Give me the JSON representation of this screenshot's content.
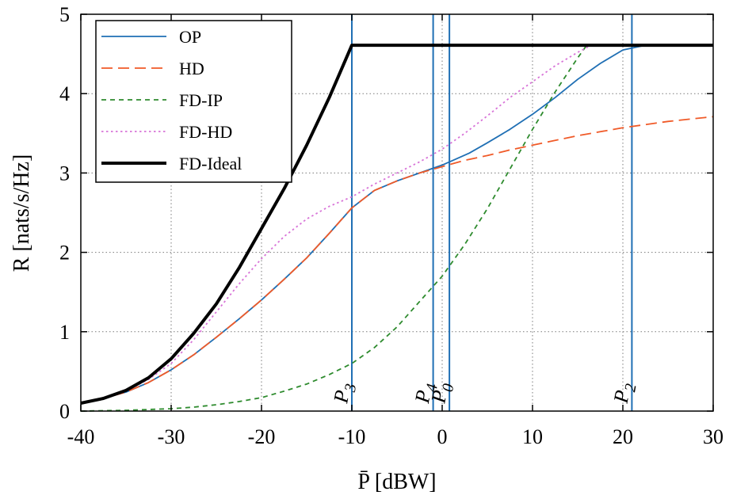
{
  "chart_data": {
    "type": "line",
    "xlabel": "P̄ [dBW]",
    "ylabel": "R [nats/s/Hz]",
    "xlim": [
      -40,
      30
    ],
    "ylim": [
      0,
      5
    ],
    "xticks": [
      -40,
      -30,
      -20,
      -10,
      0,
      10,
      20,
      30
    ],
    "xtick_labels": [
      "-40",
      "-30",
      "-20",
      "-10",
      "0",
      "10",
      "20",
      "30"
    ],
    "yticks": [
      0,
      1,
      2,
      3,
      4,
      5
    ],
    "ytick_labels": [
      "0",
      "1",
      "2",
      "3",
      "4",
      "5"
    ],
    "grid": true,
    "legend_position": "top-left",
    "series": [
      {
        "name": "OP",
        "color": "#1f6fb4",
        "style": "solid",
        "x": [
          -40,
          -37.5,
          -35,
          -32.5,
          -30,
          -27.5,
          -25,
          -22.5,
          -20,
          -17.5,
          -15,
          -12.5,
          -10,
          -7.5,
          -5,
          -2.5,
          -1,
          0,
          1,
          3,
          5,
          7.5,
          10,
          12.5,
          15,
          17.5,
          20,
          22.5,
          25,
          27.5,
          30
        ],
        "y": [
          0.1,
          0.16,
          0.24,
          0.36,
          0.52,
          0.71,
          0.93,
          1.16,
          1.4,
          1.66,
          1.93,
          2.24,
          2.56,
          2.78,
          2.9,
          3.0,
          3.06,
          3.1,
          3.15,
          3.25,
          3.38,
          3.55,
          3.74,
          3.95,
          4.18,
          4.38,
          4.55,
          4.61,
          4.61,
          4.61,
          4.61
        ]
      },
      {
        "name": "HD",
        "color": "#f05a28",
        "style": "dashed",
        "x": [
          -40,
          -37.5,
          -35,
          -32.5,
          -30,
          -27.5,
          -25,
          -22.5,
          -20,
          -17.5,
          -15,
          -12.5,
          -10,
          -7.5,
          -5,
          -2.5,
          0,
          2.5,
          5,
          7.5,
          10,
          12.5,
          15,
          17.5,
          20,
          22.5,
          25,
          27.5,
          30
        ],
        "y": [
          0.1,
          0.16,
          0.24,
          0.36,
          0.52,
          0.71,
          0.93,
          1.16,
          1.4,
          1.66,
          1.93,
          2.24,
          2.56,
          2.78,
          2.9,
          3.0,
          3.08,
          3.16,
          3.22,
          3.29,
          3.35,
          3.41,
          3.47,
          3.52,
          3.57,
          3.61,
          3.65,
          3.68,
          3.71
        ]
      },
      {
        "name": "FD-IP",
        "color": "#2e8b2e",
        "style": "dashed-short",
        "x": [
          -40,
          -35,
          -30,
          -27.5,
          -25,
          -22.5,
          -20,
          -17.5,
          -15,
          -12.5,
          -10,
          -7.5,
          -5,
          -2.5,
          0,
          2.5,
          5,
          7.5,
          10,
          12.5,
          15,
          16,
          30
        ],
        "y": [
          0,
          0.01,
          0.03,
          0.05,
          0.08,
          0.12,
          0.17,
          0.25,
          0.34,
          0.46,
          0.6,
          0.8,
          1.06,
          1.38,
          1.7,
          2.1,
          2.55,
          3.05,
          3.55,
          4.02,
          4.45,
          4.61,
          4.61
        ]
      },
      {
        "name": "FD-HD",
        "color": "#d874d8",
        "style": "dotted",
        "x": [
          -40,
          -37.5,
          -35,
          -32.5,
          -30,
          -27.5,
          -25,
          -22.5,
          -20,
          -17.5,
          -15,
          -12.5,
          -10,
          -7.5,
          -5,
          -2.5,
          0,
          2.5,
          5,
          7.5,
          10,
          12.5,
          15,
          16.5,
          30
        ],
        "y": [
          0.1,
          0.16,
          0.25,
          0.4,
          0.6,
          0.9,
          1.25,
          1.6,
          1.92,
          2.2,
          2.42,
          2.58,
          2.7,
          2.86,
          3.0,
          3.14,
          3.3,
          3.5,
          3.72,
          3.95,
          4.15,
          4.35,
          4.52,
          4.61,
          4.61
        ]
      },
      {
        "name": "FD-Ideal",
        "color": "#000000",
        "style": "solid-thick",
        "x": [
          -40,
          -37.5,
          -35,
          -32.5,
          -30,
          -27.5,
          -25,
          -22.5,
          -20,
          -17.5,
          -15,
          -12.5,
          -10,
          30
        ],
        "y": [
          0.1,
          0.16,
          0.26,
          0.42,
          0.66,
          0.98,
          1.35,
          1.8,
          2.3,
          2.8,
          3.35,
          3.95,
          4.61,
          4.61
        ]
      }
    ],
    "vertical_markers": [
      {
        "label": "P3",
        "x": -10
      },
      {
        "label": "P4",
        "x": -1
      },
      {
        "label": "P0",
        "x": 0.8
      },
      {
        "label": "P2",
        "x": 21
      }
    ]
  }
}
